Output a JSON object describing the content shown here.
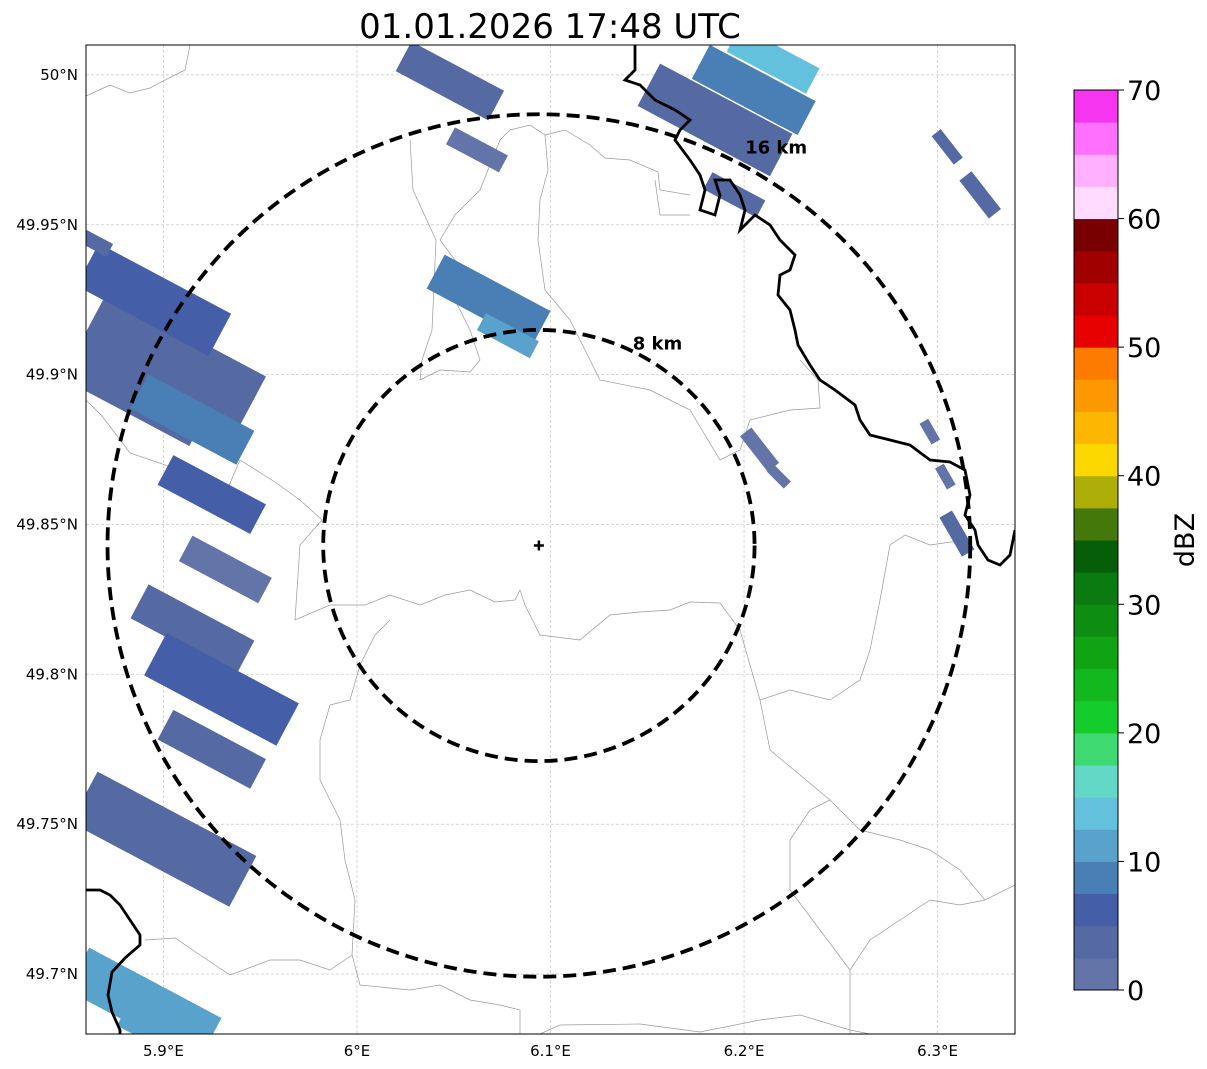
{
  "title": "01.01.2026 17:48 UTC",
  "map": {
    "lon_range": [
      5.86,
      6.34
    ],
    "lat_range": [
      49.68,
      50.01
    ],
    "grid": true,
    "lon_ticks": [
      {
        "value": 5.9,
        "label": "5.9°E"
      },
      {
        "value": 6.0,
        "label": "6°E"
      },
      {
        "value": 6.1,
        "label": "6.1°E"
      },
      {
        "value": 6.2,
        "label": "6.2°E"
      },
      {
        "value": 6.3,
        "label": "6.3°E"
      }
    ],
    "lat_ticks": [
      {
        "value": 50.0,
        "label": "50°N"
      },
      {
        "value": 49.95,
        "label": "49.95°N"
      },
      {
        "value": 49.9,
        "label": "49.9°N"
      },
      {
        "value": 49.85,
        "label": "49.85°N"
      },
      {
        "value": 49.8,
        "label": "49.8°N"
      },
      {
        "value": 49.75,
        "label": "49.75°N"
      },
      {
        "value": 49.7,
        "label": "49.7°N"
      }
    ],
    "center": {
      "lon": 6.094,
      "lat": 49.843,
      "marker": "plus-icon"
    },
    "range_rings": [
      {
        "radius_km": 8,
        "label": "8 km"
      },
      {
        "radius_km": 16,
        "label": "16 km"
      }
    ]
  },
  "colorbar": {
    "label": "dBZ",
    "min": 0,
    "max": 70,
    "ticks": [
      {
        "value": 0,
        "label": "0"
      },
      {
        "value": 10,
        "label": "10"
      },
      {
        "value": 20,
        "label": "20"
      },
      {
        "value": 30,
        "label": "30"
      },
      {
        "value": 40,
        "label": "40"
      },
      {
        "value": 50,
        "label": "50"
      },
      {
        "value": 60,
        "label": "60"
      },
      {
        "value": 70,
        "label": "70"
      }
    ],
    "colors": [
      "#6274a8",
      "#5569a2",
      "#445fa8",
      "#4a7fb5",
      "#58a2cc",
      "#63c1dd",
      "#63d8c6",
      "#3ed970",
      "#14cc2c",
      "#12b81d",
      "#10a415",
      "#0d8e12",
      "#0b7a10",
      "#065e09",
      "#45780a",
      "#adaf08",
      "#fdd800",
      "#fdb700",
      "#fd9800",
      "#fd7c00",
      "#e60000",
      "#c80000",
      "#a00000",
      "#780000",
      "#ffdcff",
      "#ffb0ff",
      "#ff70ff",
      "#f535f0"
    ]
  },
  "echoes": [
    {
      "lon": 5.905,
      "lat": 49.905,
      "dbz": 4,
      "len": 0.06,
      "angle": -62
    },
    {
      "lon": 5.895,
      "lat": 49.925,
      "dbz": 6,
      "len": 0.05,
      "angle": -62
    },
    {
      "lon": 5.885,
      "lat": 49.895,
      "dbz": 3,
      "len": 0.05,
      "angle": -62
    },
    {
      "lon": 5.915,
      "lat": 49.885,
      "dbz": 8,
      "len": 0.04,
      "angle": -62
    },
    {
      "lon": 5.925,
      "lat": 49.86,
      "dbz": 5,
      "len": 0.035,
      "angle": -62
    },
    {
      "lon": 5.932,
      "lat": 49.835,
      "dbz": 2,
      "len": 0.03,
      "angle": -62
    },
    {
      "lon": 5.862,
      "lat": 49.945,
      "dbz": 3,
      "len": 0.015,
      "angle": -62
    },
    {
      "lon": 5.915,
      "lat": 49.815,
      "dbz": 4,
      "len": 0.04,
      "angle": -62
    },
    {
      "lon": 5.93,
      "lat": 49.795,
      "dbz": 7,
      "len": 0.05,
      "angle": -62
    },
    {
      "lon": 5.925,
      "lat": 49.775,
      "dbz": 3,
      "len": 0.035,
      "angle": -62
    },
    {
      "lon": 5.9,
      "lat": 49.745,
      "dbz": 4,
      "len": 0.06,
      "angle": -62
    },
    {
      "lon": 5.89,
      "lat": 49.69,
      "dbz": 10,
      "len": 0.05,
      "angle": -62
    },
    {
      "lon": 5.9,
      "lat": 49.68,
      "dbz": 12,
      "len": 0.03,
      "angle": -62
    },
    {
      "lon": 6.048,
      "lat": 49.998,
      "dbz": 4,
      "len": 0.035,
      "angle": -62
    },
    {
      "lon": 6.062,
      "lat": 49.975,
      "dbz": 2,
      "len": 0.02,
      "angle": -62
    },
    {
      "lon": 6.068,
      "lat": 49.925,
      "dbz": 8,
      "len": 0.04,
      "angle": -62
    },
    {
      "lon": 6.078,
      "lat": 49.913,
      "dbz": 12,
      "len": 0.02,
      "angle": -62
    },
    {
      "lon": 6.185,
      "lat": 49.985,
      "dbz": 4,
      "len": 0.05,
      "angle": -62
    },
    {
      "lon": 6.205,
      "lat": 49.995,
      "dbz": 8,
      "len": 0.04,
      "angle": -62
    },
    {
      "lon": 6.215,
      "lat": 50.005,
      "dbz": 14,
      "len": 0.03,
      "angle": -62
    },
    {
      "lon": 6.195,
      "lat": 49.96,
      "dbz": 3,
      "len": 0.02,
      "angle": -62
    },
    {
      "lon": 6.305,
      "lat": 49.976,
      "dbz": 4,
      "len": 0.012,
      "angle": -38
    },
    {
      "lon": 6.322,
      "lat": 49.96,
      "dbz": 4,
      "len": 0.016,
      "angle": -38
    },
    {
      "lon": 6.208,
      "lat": 49.875,
      "dbz": 2,
      "len": 0.015,
      "angle": -38
    },
    {
      "lon": 6.218,
      "lat": 49.866,
      "dbz": 2,
      "len": 0.008,
      "angle": -45
    },
    {
      "lon": 6.296,
      "lat": 49.881,
      "dbz": 2,
      "len": 0.008,
      "angle": -30
    },
    {
      "lon": 6.31,
      "lat": 49.847,
      "dbz": 4,
      "len": 0.015,
      "angle": -30
    },
    {
      "lon": 6.304,
      "lat": 49.866,
      "dbz": 2,
      "len": 0.008,
      "angle": -30
    }
  ]
}
